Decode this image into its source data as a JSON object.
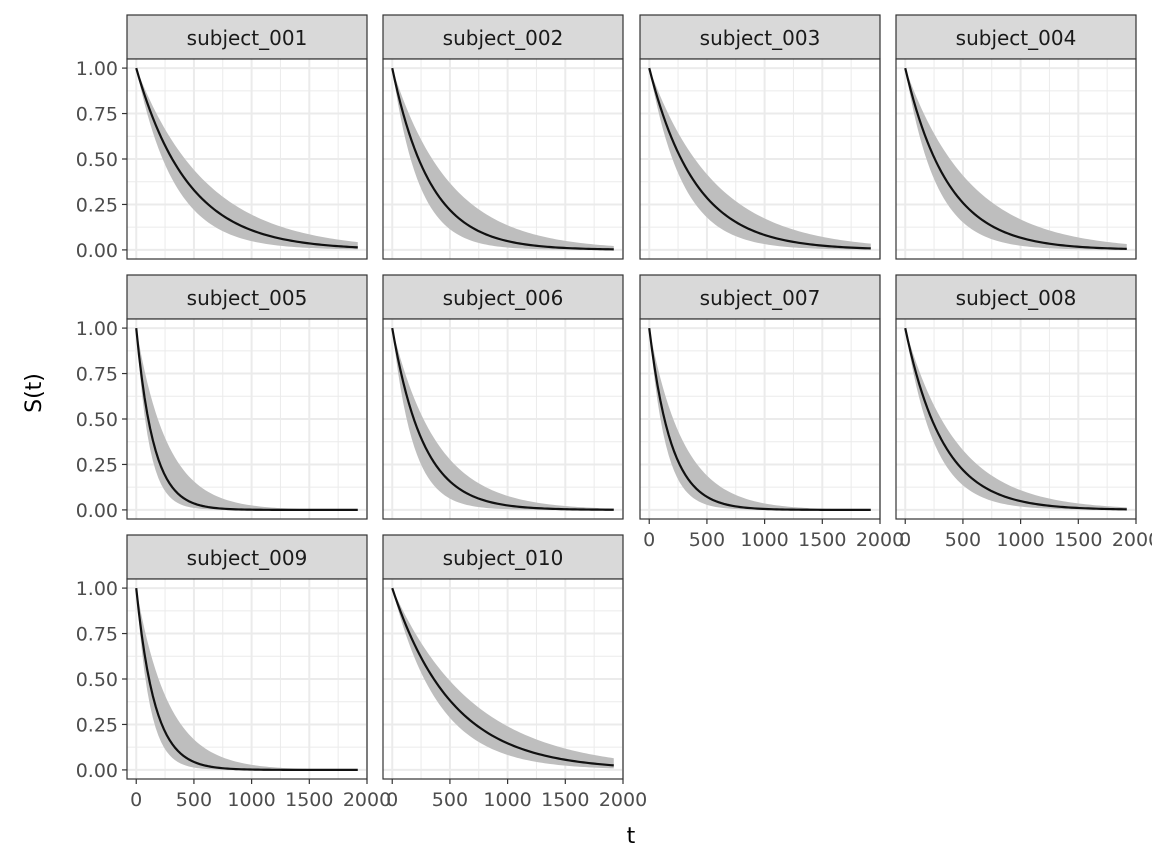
{
  "chart_data": {
    "type": "line",
    "layout": "facet-grid",
    "xlabel": "t",
    "ylabel": "S(t)",
    "xlim": [
      -80,
      2000
    ],
    "ylim": [
      -0.05,
      1.05
    ],
    "x_ticks": [
      0,
      500,
      1000,
      1500,
      2000
    ],
    "x_tick_labels": [
      "0",
      "500",
      "1000",
      "1500",
      "2000"
    ],
    "y_ticks": [
      0,
      0.25,
      0.5,
      0.75,
      1.0
    ],
    "y_tick_labels": [
      "0.00",
      "0.25",
      "0.50",
      "0.75",
      "1.00"
    ],
    "grid": true,
    "colors": {
      "line": "#111111",
      "band": "#bebebe",
      "strip": "#d9d9d9",
      "grid": "#ebebeb",
      "panel_border": "#333333"
    },
    "t_max": 1920,
    "panels": [
      {
        "title": "subject_001",
        "median_tau": 450,
        "lower_tau": 330,
        "upper_tau": 610
      },
      {
        "title": "subject_002",
        "median_tau": 330,
        "lower_tau": 230,
        "upper_tau": 500
      },
      {
        "title": "subject_003",
        "median_tau": 400,
        "lower_tau": 290,
        "upper_tau": 570
      },
      {
        "title": "subject_004",
        "median_tau": 370,
        "lower_tau": 265,
        "upper_tau": 560
      },
      {
        "title": "subject_005",
        "median_tau": 150,
        "lower_tau": 110,
        "upper_tau": 270
      },
      {
        "title": "subject_006",
        "median_tau": 270,
        "lower_tau": 180,
        "upper_tau": 390
      },
      {
        "title": "subject_007",
        "median_tau": 190,
        "lower_tau": 140,
        "upper_tau": 300
      },
      {
        "title": "subject_008",
        "median_tau": 330,
        "lower_tau": 250,
        "upper_tau": 450
      },
      {
        "title": "subject_009",
        "median_tau": 160,
        "lower_tau": 115,
        "upper_tau": 280
      },
      {
        "title": "subject_010",
        "median_tau": 520,
        "lower_tau": 400,
        "upper_tau": 700
      }
    ]
  }
}
